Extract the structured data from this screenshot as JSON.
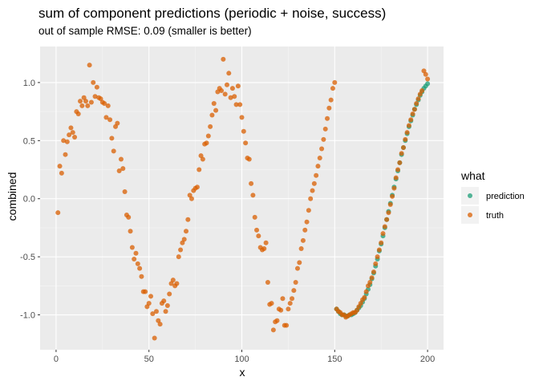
{
  "chart_data": {
    "type": "scatter",
    "title": "sum of component predictions (periodic + noise, success)",
    "subtitle": "out of sample RMSE: 0.09 (smaller is better)",
    "xlabel": "x",
    "ylabel": "combined",
    "xlim": [
      -8.6,
      208.6
    ],
    "ylim": [
      -1.3,
      1.31
    ],
    "x_ticks": [
      0,
      50,
      100,
      150,
      200
    ],
    "y_ticks": [
      -1.0,
      -0.5,
      0.0,
      0.5,
      1.0
    ],
    "x_tick_labels": [
      "0",
      "50",
      "100",
      "150",
      "200"
    ],
    "y_tick_labels": [
      "-1.0",
      "-0.5",
      "0.0",
      "0.5",
      "1.0"
    ],
    "grid": true,
    "legend": {
      "title": "what",
      "position": "right"
    },
    "series": [
      {
        "name": "prediction",
        "color": "#1b9e77",
        "x": [
          151,
          152,
          153,
          154,
          155,
          156,
          157,
          158,
          159,
          160,
          161,
          162,
          163,
          164,
          165,
          166,
          167,
          168,
          169,
          170,
          171,
          172,
          173,
          174,
          175,
          176,
          177,
          178,
          179,
          180,
          181,
          182,
          183,
          184,
          185,
          186,
          187,
          188,
          189,
          190,
          191,
          192,
          193,
          194,
          195,
          196,
          197,
          198,
          199,
          200
        ],
        "y": [
          -0.95,
          -0.97,
          -0.99,
          -1.0,
          -1.0,
          -1.01,
          -1.01,
          -1.0,
          -1.0,
          -0.99,
          -0.98,
          -0.96,
          -0.94,
          -0.92,
          -0.89,
          -0.86,
          -0.82,
          -0.78,
          -0.74,
          -0.69,
          -0.64,
          -0.58,
          -0.52,
          -0.45,
          -0.39,
          -0.32,
          -0.25,
          -0.18,
          -0.11,
          -0.04,
          0.03,
          0.1,
          0.17,
          0.24,
          0.31,
          0.38,
          0.44,
          0.5,
          0.56,
          0.62,
          0.67,
          0.72,
          0.77,
          0.81,
          0.85,
          0.89,
          0.92,
          0.95,
          0.97,
          0.99
        ]
      },
      {
        "name": "truth",
        "color": "#d95f02",
        "x": [
          1,
          2,
          3,
          4,
          5,
          6,
          7,
          8,
          9,
          10,
          11,
          12,
          13,
          14,
          15,
          16,
          17,
          18,
          19,
          20,
          21,
          22,
          23,
          24,
          25,
          26,
          27,
          28,
          29,
          30,
          31,
          32,
          33,
          34,
          35,
          36,
          37,
          38,
          39,
          40,
          41,
          42,
          43,
          44,
          45,
          46,
          47,
          48,
          49,
          50,
          51,
          52,
          53,
          54,
          55,
          56,
          57,
          58,
          59,
          60,
          61,
          62,
          63,
          64,
          65,
          66,
          67,
          68,
          69,
          70,
          71,
          72,
          73,
          74,
          75,
          76,
          77,
          78,
          79,
          80,
          81,
          82,
          83,
          84,
          85,
          86,
          87,
          88,
          89,
          90,
          91,
          92,
          93,
          94,
          95,
          96,
          97,
          98,
          99,
          100,
          101,
          102,
          103,
          104,
          105,
          106,
          107,
          108,
          109,
          110,
          111,
          112,
          113,
          114,
          115,
          116,
          117,
          118,
          119,
          120,
          121,
          122,
          123,
          124,
          125,
          126,
          127,
          128,
          129,
          130,
          131,
          132,
          133,
          134,
          135,
          136,
          137,
          138,
          139,
          140,
          141,
          142,
          143,
          144,
          145,
          146,
          147,
          148,
          149,
          150,
          151,
          152,
          153,
          154,
          155,
          156,
          157,
          158,
          159,
          160,
          161,
          162,
          163,
          164,
          165,
          166,
          167,
          168,
          169,
          170,
          171,
          172,
          173,
          174,
          175,
          176,
          177,
          178,
          179,
          180,
          181,
          182,
          183,
          184,
          185,
          186,
          187,
          188,
          189,
          190,
          191,
          192,
          193,
          194,
          195,
          196,
          197,
          198,
          199,
          200
        ],
        "y": [
          -0.12,
          0.28,
          0.22,
          0.5,
          0.38,
          0.49,
          0.55,
          0.61,
          0.57,
          0.53,
          0.75,
          0.73,
          0.84,
          0.8,
          0.87,
          0.84,
          0.8,
          1.15,
          0.83,
          1.0,
          0.88,
          0.96,
          0.87,
          0.86,
          0.83,
          0.82,
          0.7,
          0.8,
          0.68,
          0.52,
          0.41,
          0.62,
          0.65,
          0.24,
          0.34,
          0.26,
          0.06,
          -0.14,
          -0.16,
          -0.28,
          -0.42,
          -0.52,
          -0.47,
          -0.56,
          -0.6,
          -0.67,
          -0.8,
          -0.8,
          -0.93,
          -0.9,
          -0.84,
          -0.99,
          -1.2,
          -0.97,
          -1.05,
          -1.08,
          -0.9,
          -0.88,
          -0.97,
          -0.92,
          -0.82,
          -0.73,
          -0.7,
          -0.75,
          -0.73,
          -0.5,
          -0.44,
          -0.38,
          -0.35,
          -0.28,
          -0.18,
          0.03,
          0.0,
          0.07,
          0.09,
          0.1,
          0.25,
          0.37,
          0.34,
          0.47,
          0.48,
          0.54,
          0.62,
          0.72,
          0.82,
          0.76,
          0.92,
          0.95,
          0.93,
          1.2,
          0.9,
          0.98,
          1.08,
          0.87,
          0.95,
          0.88,
          0.81,
          0.97,
          0.81,
          0.7,
          0.58,
          0.48,
          0.35,
          0.34,
          0.13,
          0.03,
          -0.16,
          -0.27,
          -0.32,
          -0.42,
          -0.44,
          -0.43,
          -0.38,
          -0.72,
          -0.91,
          -0.9,
          -1.13,
          -1.06,
          -1.05,
          -0.95,
          -0.96,
          -0.86,
          -1.09,
          -1.09,
          -0.95,
          -0.9,
          -0.86,
          -0.79,
          -0.72,
          -0.6,
          -0.55,
          -0.43,
          -0.36,
          -0.27,
          -0.2,
          -0.1,
          0.0,
          0.07,
          0.13,
          0.2,
          0.28,
          0.35,
          0.43,
          0.51,
          0.6,
          0.69,
          0.78,
          0.85,
          0.95,
          1.0,
          -0.95,
          -0.97,
          -0.98,
          -1.0,
          -1.0,
          -1.02,
          -1.01,
          -1.0,
          -0.99,
          -0.98,
          -0.98,
          -0.96,
          -0.93,
          -0.9,
          -0.87,
          -0.85,
          -0.8,
          -0.75,
          -0.72,
          -0.68,
          -0.63,
          -0.56,
          -0.5,
          -0.44,
          -0.38,
          -0.3,
          -0.24,
          -0.18,
          -0.12,
          -0.05,
          0.02,
          0.09,
          0.18,
          0.25,
          0.31,
          0.39,
          0.44,
          0.51,
          0.57,
          0.63,
          0.68,
          0.73,
          0.77,
          0.82,
          0.86,
          0.9,
          0.93,
          1.1,
          1.07,
          1.03
        ]
      }
    ]
  }
}
